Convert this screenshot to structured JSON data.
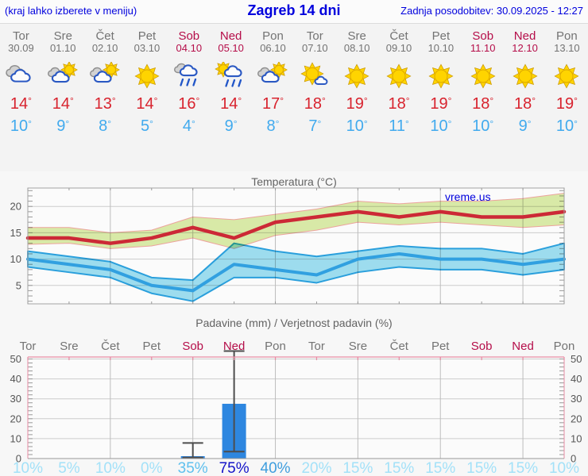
{
  "header": {
    "left": "(kraj lahko izberete v meniju)",
    "title": "Zagreb 14 dni",
    "right": "Zadnja posodobitev: 30.09.2025 - 12:27"
  },
  "watermark": "vreme.us",
  "forecast": {
    "days": [
      {
        "name": "Tor",
        "date": "30.09",
        "weekend": false,
        "icon": "cloudy",
        "high": 14,
        "low": 10
      },
      {
        "name": "Sre",
        "date": "01.10",
        "weekend": false,
        "icon": "partly-cloudy",
        "high": 14,
        "low": 9
      },
      {
        "name": "Čet",
        "date": "02.10",
        "weekend": false,
        "icon": "partly-cloudy",
        "high": 13,
        "low": 8
      },
      {
        "name": "Pet",
        "date": "03.10",
        "weekend": false,
        "icon": "sunny",
        "high": 14,
        "low": 5
      },
      {
        "name": "Sob",
        "date": "04.10",
        "weekend": true,
        "icon": "rain",
        "high": 16,
        "low": 4
      },
      {
        "name": "Ned",
        "date": "05.10",
        "weekend": true,
        "icon": "sun-rain",
        "high": 14,
        "low": 9
      },
      {
        "name": "Pon",
        "date": "06.10",
        "weekend": false,
        "icon": "partly-cloudy",
        "high": 17,
        "low": 8
      },
      {
        "name": "Tor",
        "date": "07.10",
        "weekend": false,
        "icon": "mostly-sunny",
        "high": 18,
        "low": 7
      },
      {
        "name": "Sre",
        "date": "08.10",
        "weekend": false,
        "icon": "sunny",
        "high": 19,
        "low": 10
      },
      {
        "name": "Čet",
        "date": "09.10",
        "weekend": false,
        "icon": "sunny",
        "high": 18,
        "low": 11
      },
      {
        "name": "Pet",
        "date": "10.10",
        "weekend": false,
        "icon": "sunny",
        "high": 19,
        "low": 10
      },
      {
        "name": "Sob",
        "date": "11.10",
        "weekend": true,
        "icon": "sunny",
        "high": 18,
        "low": 10
      },
      {
        "name": "Ned",
        "date": "12.10",
        "weekend": true,
        "icon": "sunny",
        "high": 18,
        "low": 9
      },
      {
        "name": "Pon",
        "date": "13.10",
        "weekend": false,
        "icon": "sunny",
        "high": 19,
        "low": 10
      }
    ]
  },
  "chart_data": [
    {
      "type": "line",
      "title": "Temperatura (°C)",
      "x_labels": [
        "Tor",
        "Sre",
        "Čet",
        "Pet",
        "Sob",
        "Ned",
        "Pon",
        "Tor",
        "Sre",
        "Čet",
        "Pet",
        "Sob",
        "Ned",
        "Pon"
      ],
      "ylim": [
        1.5,
        23.5
      ],
      "yticks": [
        5,
        10,
        15,
        20
      ],
      "minor_tick_step": 1,
      "grid": true,
      "series": [
        {
          "name": "max-temperature",
          "color": "#cc2936",
          "values": [
            14,
            14,
            13,
            14,
            16,
            14,
            17,
            18,
            19,
            18,
            19,
            18,
            18,
            19
          ]
        },
        {
          "name": "min-temperature",
          "color": "#31a0e0",
          "values": [
            10,
            9,
            8,
            5,
            4,
            9,
            8,
            7,
            10,
            11,
            10,
            10,
            9,
            10
          ]
        }
      ],
      "bands": [
        {
          "name": "max-range",
          "fill": "#dcedaa",
          "stroke": "#f0a6a0",
          "upper": [
            16,
            16,
            15,
            15.5,
            18,
            17.5,
            18.5,
            19.5,
            21,
            20.5,
            21,
            21,
            21.5,
            22.5
          ],
          "lower": [
            12.8,
            13,
            12,
            12.5,
            14,
            12,
            14.5,
            15.5,
            17,
            16.5,
            17,
            16.5,
            16,
            16.5
          ]
        },
        {
          "name": "min-range",
          "fill": "#a0e0f2",
          "stroke": "#2aa2e0",
          "upper": [
            11.5,
            10.5,
            9.5,
            6.5,
            6,
            13,
            11.5,
            10.5,
            11.5,
            12.5,
            12,
            12,
            11,
            13
          ],
          "lower": [
            8.5,
            7.5,
            6.5,
            3.5,
            2,
            6.5,
            6.5,
            5.5,
            7.5,
            8.5,
            8,
            8,
            7,
            8
          ]
        }
      ]
    },
    {
      "type": "bar",
      "title": "Padavine (mm) / Verjetnost padavin (%)",
      "x_labels": [
        "Tor",
        "Sre",
        "Čet",
        "Pet",
        "Sob",
        "Ned",
        "Pon",
        "Tor",
        "Sre",
        "Čet",
        "Pet",
        "Sob",
        "Ned",
        "Pon"
      ],
      "weekend_flags": [
        false,
        false,
        false,
        false,
        true,
        true,
        false,
        false,
        false,
        false,
        false,
        true,
        true,
        false
      ],
      "ylim": [
        0,
        51
      ],
      "yticks": [
        0,
        10,
        20,
        30,
        40,
        50
      ],
      "minor_tick_step": 2,
      "values": [
        0,
        0,
        0,
        0,
        1.2,
        27.5,
        0,
        0,
        0,
        0,
        0,
        0,
        0,
        0
      ],
      "whiskers": [
        {
          "day": 4,
          "low": 0.5,
          "high": 7.8
        },
        {
          "day": 5,
          "low": 3.5,
          "high": 54
        }
      ],
      "probabilities": [
        10,
        5,
        10,
        0,
        35,
        75,
        40,
        20,
        15,
        15,
        15,
        15,
        15,
        10
      ]
    }
  ],
  "colors": {
    "header_blue": "#0000dd",
    "weekday_gray": "#737373",
    "weekend_red": "#b50d49",
    "temp_high": "#d8232e",
    "temp_low": "#41aaee",
    "bar_fill": "#2e87e0",
    "whisker": "#4d4d4d",
    "grid_h": "#cccccc",
    "grid_v": "#bdbdbd",
    "plot_border": "#a3a3a3",
    "precip_axis_pink": "#e78ba3",
    "prob_pale": "#a3e1f8",
    "prob_mid": "#5fc0ee",
    "prob_mid2": "#3f9ede",
    "prob_high": "#1414c8"
  }
}
